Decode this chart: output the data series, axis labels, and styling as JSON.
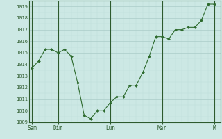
{
  "background_color": "#cce8e4",
  "plot_bg_color": "#cce8e4",
  "line_color": "#2d6a2d",
  "marker_color": "#2d6a2d",
  "grid_color_major": "#aaccc8",
  "grid_color_minor": "#bbddd9",
  "axis_color": "#2d5a2d",
  "tick_label_color": "#2d5a2d",
  "ylim": [
    1009,
    1019.5
  ],
  "yticks": [
    1009,
    1010,
    1011,
    1012,
    1013,
    1014,
    1015,
    1016,
    1017,
    1018,
    1019
  ],
  "x_day_labels": [
    "Sam",
    "Dim",
    "Lun",
    "Mar",
    "M"
  ],
  "x_day_positions": [
    0,
    8,
    24,
    40,
    56
  ],
  "xlim": [
    -1,
    58
  ],
  "data_x": [
    0,
    2,
    4,
    6,
    8,
    10,
    12,
    14,
    16,
    18,
    20,
    22,
    24,
    26,
    28,
    30,
    32,
    34,
    36,
    38,
    40,
    42,
    44,
    46,
    48,
    50,
    52,
    54,
    56
  ],
  "data_y": [
    1013.7,
    1014.3,
    1015.3,
    1015.3,
    1015.0,
    1015.3,
    1014.7,
    1012.4,
    1009.6,
    1009.3,
    1010.0,
    1010.0,
    1010.7,
    1011.2,
    1011.2,
    1012.2,
    1012.2,
    1013.3,
    1014.7,
    1016.4,
    1016.4,
    1016.2,
    1017.0,
    1017.0,
    1017.2,
    1017.2,
    1017.8,
    1019.2,
    1019.2
  ]
}
